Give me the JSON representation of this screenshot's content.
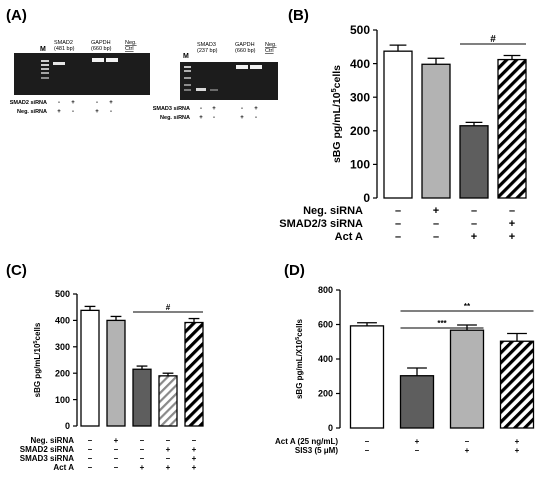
{
  "colors": {
    "white": "#ffffff",
    "light_gray": "#b3b3b3",
    "dark_gray": "#5e5e5e",
    "black": "#000000",
    "gel_bg": "#1c1c1c",
    "band": "#e6e6e6"
  },
  "gel_a": {
    "label": "(A)",
    "gel1": {
      "marker": "M",
      "lanes": [
        "SMAD2\n(481 bp)",
        "GAPDH\n(660 bp)",
        "Neg.\nCtrl"
      ],
      "rows": [
        {
          "label": "SMAD2 siRNA",
          "marks": [
            "-",
            "+",
            "-",
            "+"
          ]
        },
        {
          "label": "Neg. siRNA",
          "marks": [
            "+",
            "-",
            "+",
            "-"
          ]
        }
      ]
    },
    "gel2": {
      "marker": "M",
      "lanes": [
        "SMAD3\n(237 bp)",
        "GAPDH\n(660 bp)",
        "Neg.\nCtrl"
      ],
      "rows": [
        {
          "label": "SMAD3 siRNA",
          "marks": [
            "-",
            "+",
            "-",
            "+"
          ]
        },
        {
          "label": "Neg. siRNA",
          "marks": [
            "+",
            "-",
            "+",
            "-"
          ]
        }
      ]
    }
  },
  "chart_data": [
    {
      "id": "B",
      "panel_label": "(B)",
      "type": "bar",
      "ylabel": "sBG pg/mL/10^5cells",
      "ylim": [
        0,
        500
      ],
      "yticks": [
        0,
        100,
        200,
        300,
        400,
        500
      ],
      "values": [
        437,
        398,
        215,
        412
      ],
      "errors": [
        18,
        18,
        10,
        12
      ],
      "fills": [
        "white",
        "light_gray",
        "dark_gray",
        "hatch"
      ],
      "significance": [
        {
          "from": 2,
          "to": 3,
          "label": "#"
        }
      ],
      "factor_rows": [
        {
          "label": "Neg. siRNA",
          "marks": [
            "–",
            "+",
            "–",
            "–"
          ]
        },
        {
          "label": "SMAD2/3 siRNA",
          "marks": [
            "–",
            "–",
            "–",
            "+"
          ]
        },
        {
          "label": "Act A",
          "marks": [
            "–",
            "–",
            "+",
            "+"
          ]
        }
      ]
    },
    {
      "id": "C",
      "panel_label": "(C)",
      "type": "bar",
      "ylabel": "sBG pg/mL/10^5cells",
      "ylim": [
        0,
        500
      ],
      "yticks": [
        0,
        100,
        200,
        300,
        400,
        500
      ],
      "values": [
        438,
        400,
        215,
        190,
        392
      ],
      "errors": [
        15,
        15,
        12,
        10,
        15
      ],
      "fills": [
        "white",
        "light_gray",
        "dark_gray",
        "hatch_gray",
        "hatch"
      ],
      "significance": [
        {
          "from": 2,
          "to": 4,
          "label": "#"
        }
      ],
      "factor_rows": [
        {
          "label": "Neg. siRNA",
          "marks": [
            "–",
            "+",
            "–",
            "–",
            "–"
          ]
        },
        {
          "label": "SMAD2 siRNA",
          "marks": [
            "–",
            "–",
            "–",
            "+",
            "+"
          ]
        },
        {
          "label": "SMAD3 siRNA",
          "marks": [
            "–",
            "–",
            "–",
            "–",
            "+"
          ]
        },
        {
          "label": "Act A",
          "marks": [
            "–",
            "–",
            "+",
            "+",
            "+"
          ]
        }
      ]
    },
    {
      "id": "D",
      "panel_label": "(D)",
      "type": "bar",
      "ylabel": "sBG pg/mL/X10^5cells",
      "ylim": [
        0,
        800
      ],
      "yticks": [
        0,
        200,
        400,
        600,
        800
      ],
      "values": [
        592,
        303,
        567,
        503
      ],
      "errors": [
        18,
        45,
        30,
        45
      ],
      "fills": [
        "white",
        "dark_gray",
        "light_gray",
        "hatch"
      ],
      "significance": [
        {
          "from": 1,
          "to": 2,
          "label": "***"
        },
        {
          "from": 1,
          "to": 3,
          "label": "**"
        }
      ],
      "factor_rows": [
        {
          "label": "Act A (25 ng/mL)",
          "marks": [
            "–",
            "+",
            "–",
            "+"
          ]
        },
        {
          "label": "SIS3 (5 μM)",
          "marks": [
            "–",
            "–",
            "+",
            "+"
          ]
        }
      ]
    }
  ]
}
